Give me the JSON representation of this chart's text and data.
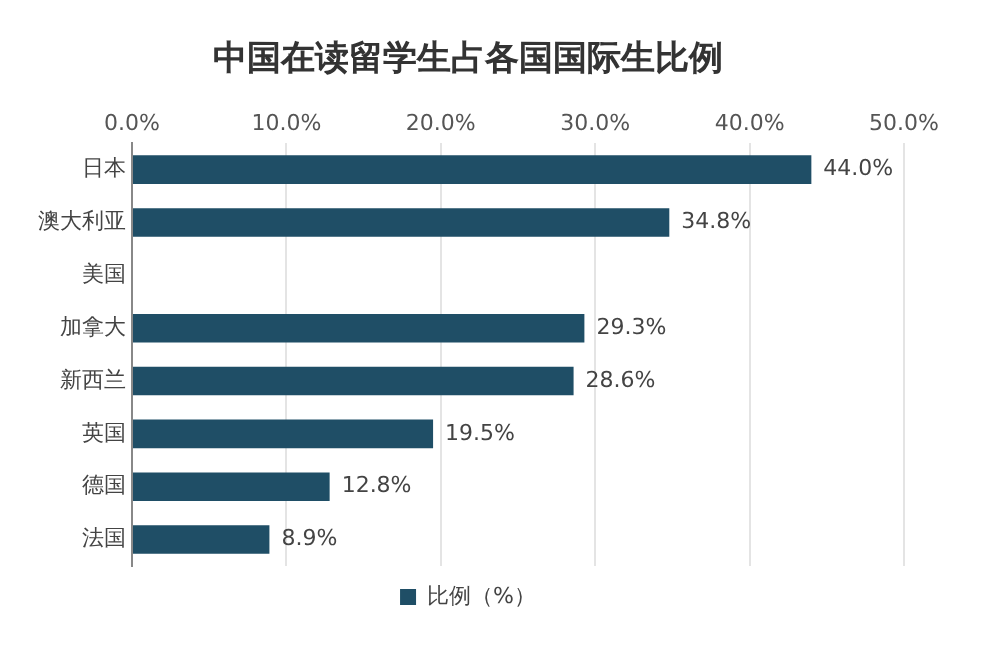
{
  "chart_data": {
    "type": "bar",
    "orientation": "horizontal",
    "title": "中国在读留学生占各国国际生比例",
    "categories": [
      "日本",
      "澳大利亚",
      "美国",
      "加拿大",
      "新西兰",
      "英国",
      "德国",
      "法国"
    ],
    "series": [
      {
        "name": "比例（%）",
        "color": "#1f4e66",
        "values": [
          44.0,
          34.8,
          null,
          29.3,
          28.6,
          19.5,
          12.8,
          8.9
        ],
        "value_labels": [
          "44.0%",
          "34.8%",
          null,
          "29.3%",
          "28.6%",
          "19.5%",
          "12.8%",
          "8.9%"
        ]
      }
    ],
    "xlim": [
      0,
      50
    ],
    "xticks": [
      {
        "value": 0,
        "label": "0.0%"
      },
      {
        "value": 10,
        "label": "10.0%"
      },
      {
        "value": 20,
        "label": "20.0%"
      },
      {
        "value": 30,
        "label": "30.0%"
      },
      {
        "value": 40,
        "label": "40.0%"
      },
      {
        "value": 50,
        "label": "50.0%"
      }
    ],
    "grid": "x",
    "legend": "bottom"
  }
}
